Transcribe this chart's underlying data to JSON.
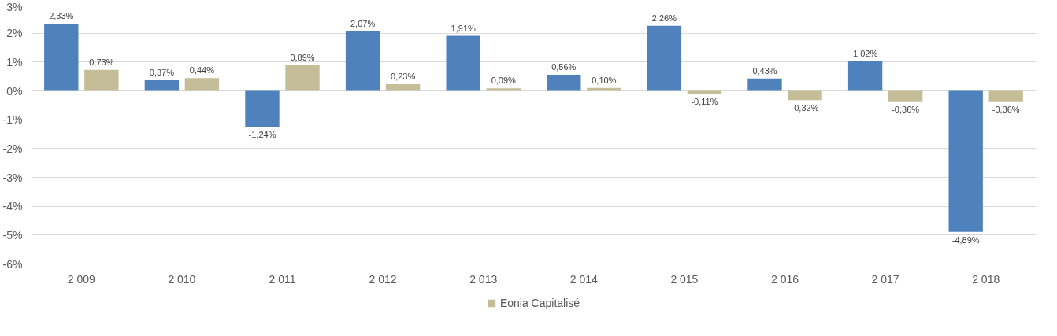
{
  "chart_data": {
    "type": "bar",
    "categories": [
      "2 009",
      "2 010",
      "2 011",
      "2 012",
      "2 013",
      "2 014",
      "2 015",
      "2 016",
      "2 017",
      "2 018"
    ],
    "series": [
      {
        "color": "#4f81bd",
        "values": [
          2.33,
          0.37,
          -1.24,
          2.07,
          1.91,
          0.56,
          2.26,
          0.43,
          1.02,
          -4.89
        ],
        "value_labels": [
          "2,33%",
          "0,37%",
          "-1,24%",
          "2,07%",
          "1,91%",
          "0,56%",
          "2,26%",
          "0,43%",
          "1,02%",
          "-4,89%"
        ]
      },
      {
        "name": "Eonia Capitalisé",
        "color": "#c4bd97",
        "values": [
          0.73,
          0.44,
          0.89,
          0.23,
          0.09,
          0.1,
          -0.11,
          -0.32,
          -0.36,
          -0.36
        ],
        "value_labels": [
          "0,73%",
          "0,44%",
          "0,89%",
          "0,23%",
          "0,09%",
          "0,10%",
          "-0,11%",
          "-0,32%",
          "-0,36%",
          "-0,36%"
        ]
      }
    ],
    "ylim": [
      -6,
      3
    ],
    "yticks": [
      {
        "value": -6,
        "label": "-6%"
      },
      {
        "value": -5,
        "label": "-5%"
      },
      {
        "value": -4,
        "label": "-4%"
      },
      {
        "value": -3,
        "label": "-3%"
      },
      {
        "value": -2,
        "label": "-2%"
      },
      {
        "value": -1,
        "label": "-1%"
      },
      {
        "value": 0,
        "label": "0%"
      },
      {
        "value": 1,
        "label": "1%"
      },
      {
        "value": 2,
        "label": "2%"
      },
      {
        "value": 3,
        "label": "3%"
      }
    ],
    "grid": "y",
    "legend": "bottom"
  }
}
